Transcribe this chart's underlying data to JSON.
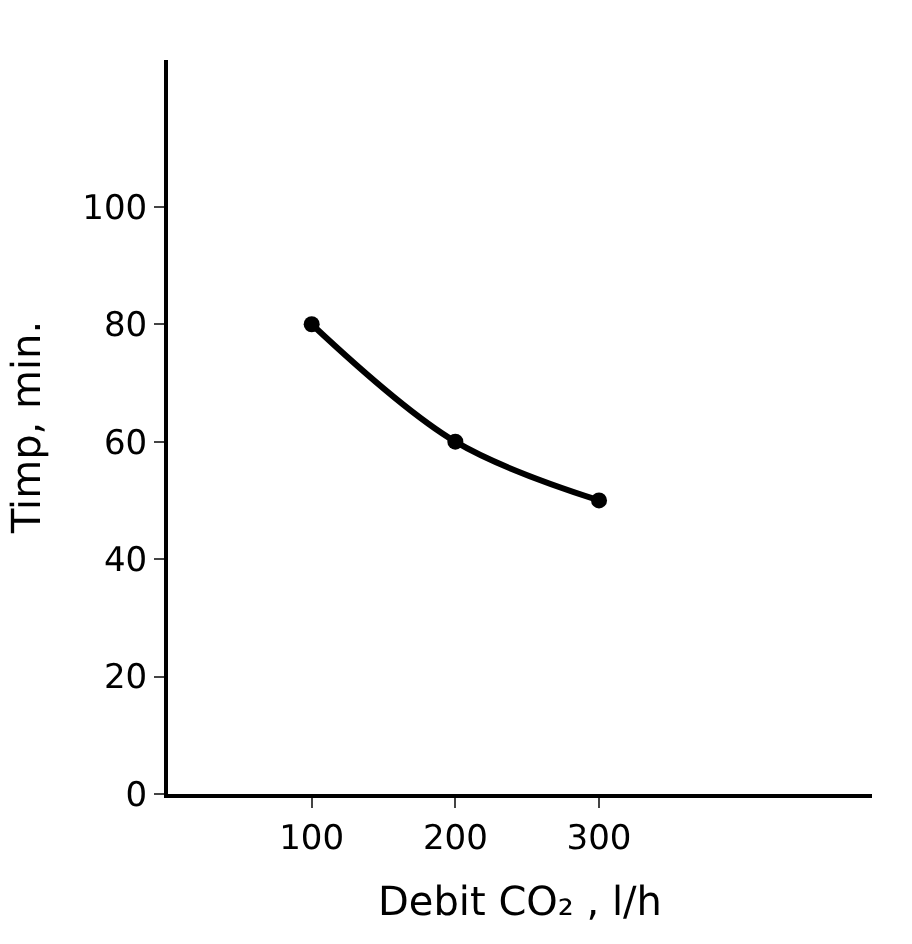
{
  "chart_data": {
    "type": "line",
    "xlabel": "Debit CO₂ , l/h",
    "ylabel": "Timp, min.",
    "x": [
      100,
      200,
      300
    ],
    "series": [
      {
        "color": "#000000",
        "values": [
          80,
          60,
          50
        ]
      }
    ],
    "xlim": [
      0,
      490
    ],
    "xticks": [
      100,
      200,
      300
    ],
    "ylim": [
      0,
      125
    ],
    "yticks": [
      0,
      20,
      40,
      60,
      80,
      100
    ],
    "legend": false,
    "marker": "circle",
    "line_style": "solid"
  }
}
